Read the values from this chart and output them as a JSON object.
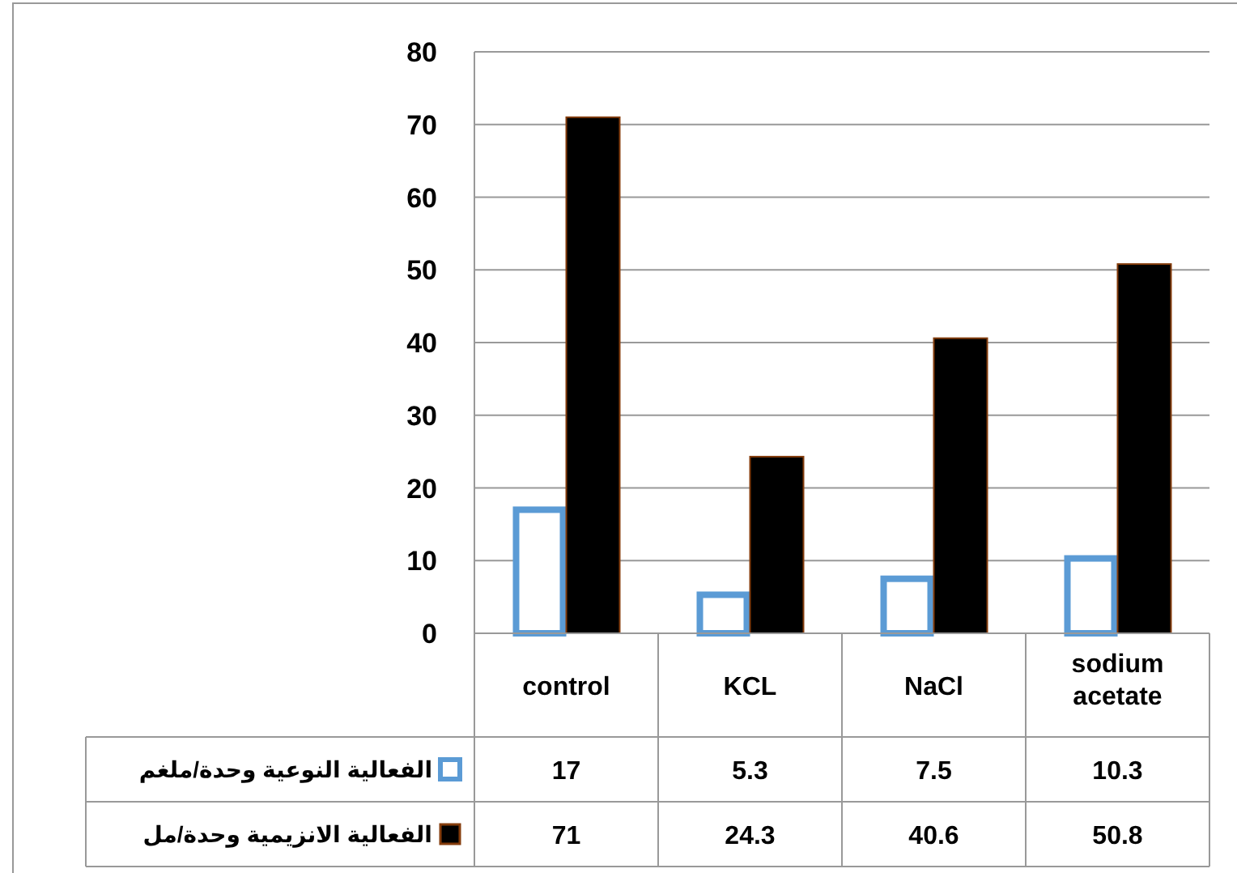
{
  "chart_data": {
    "type": "bar",
    "categories": [
      "control",
      "KCL",
      "NaCl",
      "sodium acetate"
    ],
    "series": [
      {
        "name": "الفعالية النوعية وحدة/ملغم",
        "color": "#5b9bd5",
        "values": [
          17,
          5.3,
          7.5,
          10.3
        ]
      },
      {
        "name": "الفعالية الانزيمية وحدة/مل",
        "color": "#000000",
        "values": [
          71,
          24.3,
          40.6,
          50.8
        ]
      }
    ],
    "ylim": [
      0,
      80
    ],
    "yticks": [
      0,
      10,
      20,
      30,
      40,
      50,
      60,
      70,
      80
    ],
    "grid": "y",
    "legend": "bottom left",
    "data_labels": true
  }
}
